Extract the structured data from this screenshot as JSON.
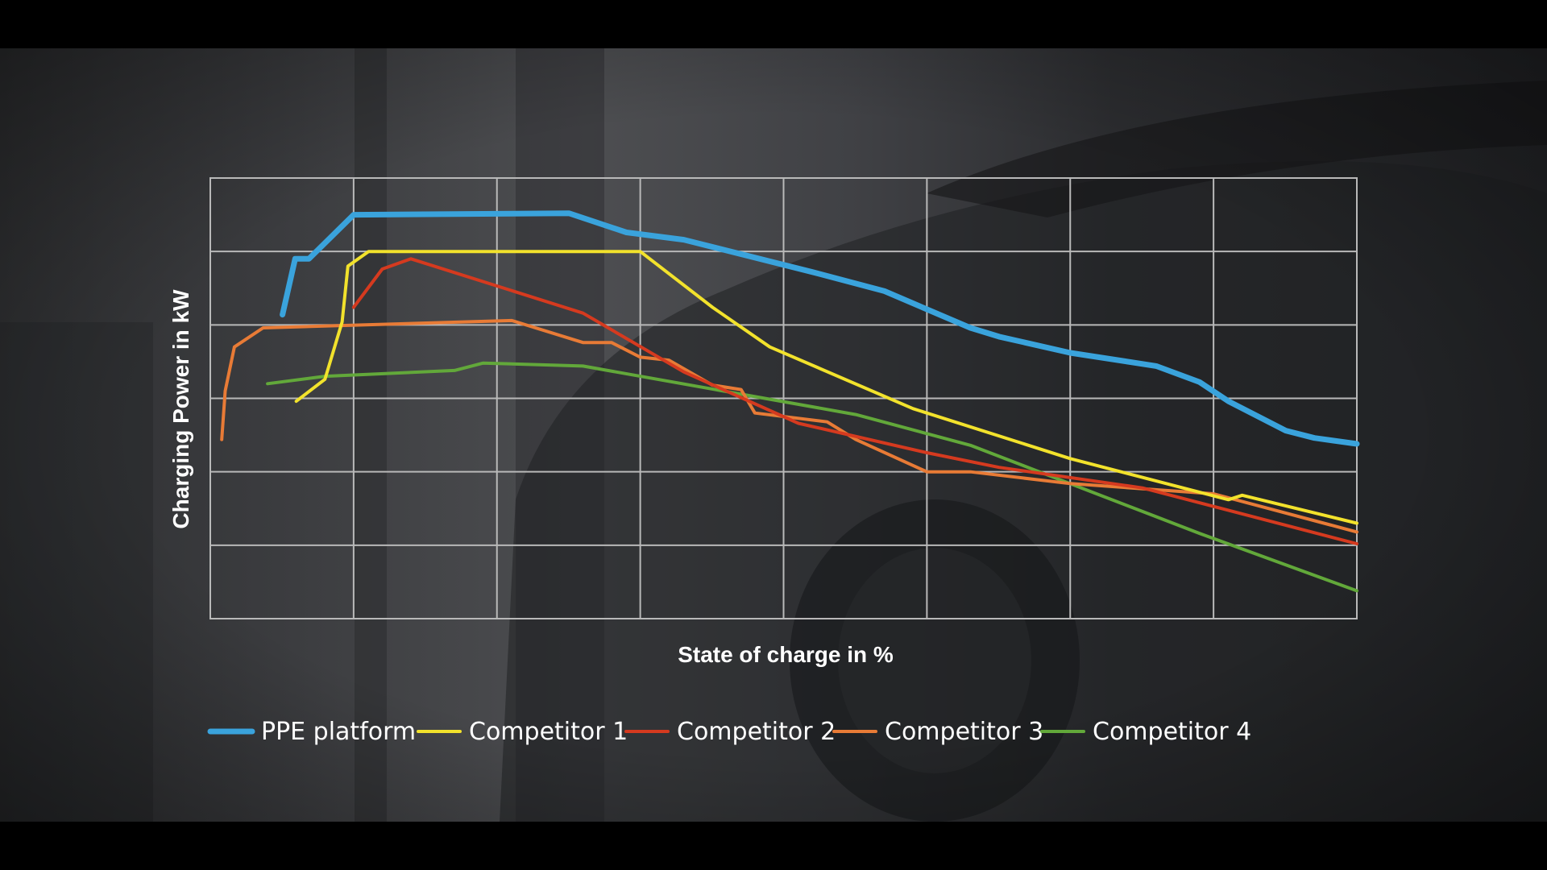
{
  "chart_data": {
    "type": "line",
    "title": "",
    "xlabel": "State of charge in %",
    "ylabel": "Charging Power in kW",
    "xlim": [
      0,
      100
    ],
    "ylim": [
      0,
      300
    ],
    "grid": true,
    "x_gridlines": 8,
    "y_gridlines": 6,
    "legend_position": "bottom",
    "series": [
      {
        "name": "PPE platform",
        "color": "#3aa3dc",
        "x": [
          6.3,
          7.4,
          8.6,
          12.5,
          31.3,
          36.3,
          41.3,
          52.5,
          58.8,
          66.3,
          68.8,
          75.0,
          82.5,
          86.3,
          88.8,
          93.8,
          96.3,
          100.0
        ],
        "y": [
          207,
          245,
          245,
          275,
          276,
          263,
          258,
          236,
          223,
          198,
          192,
          181,
          172,
          161,
          148,
          128,
          123,
          119
        ]
      },
      {
        "name": "Competitor 1",
        "color": "#f2e22c",
        "x": [
          7.5,
          10.0,
          11.5,
          12.0,
          13.8,
          37.5,
          43.8,
          48.8,
          61.3,
          75.0,
          88.8,
          90.0,
          100.0
        ],
        "y": [
          148,
          163,
          202,
          240,
          250,
          250,
          212,
          185,
          143,
          109,
          81,
          84,
          65
        ]
      },
      {
        "name": "Competitor 2",
        "color": "#d53a1f",
        "x": [
          12.5,
          15.0,
          17.5,
          32.5,
          41.3,
          51.3,
          62.5,
          68.8,
          81.3,
          100.0
        ],
        "y": [
          212,
          238,
          245,
          208,
          168,
          133,
          113,
          103,
          89,
          51
        ]
      },
      {
        "name": "Competitor 3",
        "color": "#e87b36",
        "x": [
          1.0,
          1.3,
          2.1,
          4.6,
          26.3,
          32.5,
          35.0,
          37.5,
          40.0,
          43.8,
          46.3,
          47.5,
          53.8,
          56.3,
          62.5,
          66.3,
          75.0,
          87.5,
          100.0
        ],
        "y": [
          122,
          155,
          185,
          198,
          203,
          188,
          188,
          178,
          176,
          159,
          156,
          140,
          134,
          122,
          100,
          100,
          92,
          85,
          59
        ]
      },
      {
        "name": "Competitor 4",
        "color": "#62a83a",
        "x": [
          5.0,
          10.0,
          21.3,
          23.8,
          32.5,
          56.3,
          66.3,
          86.3,
          100.0
        ],
        "y": [
          160,
          165,
          169,
          174,
          172,
          139,
          118,
          58,
          19
        ]
      }
    ]
  }
}
